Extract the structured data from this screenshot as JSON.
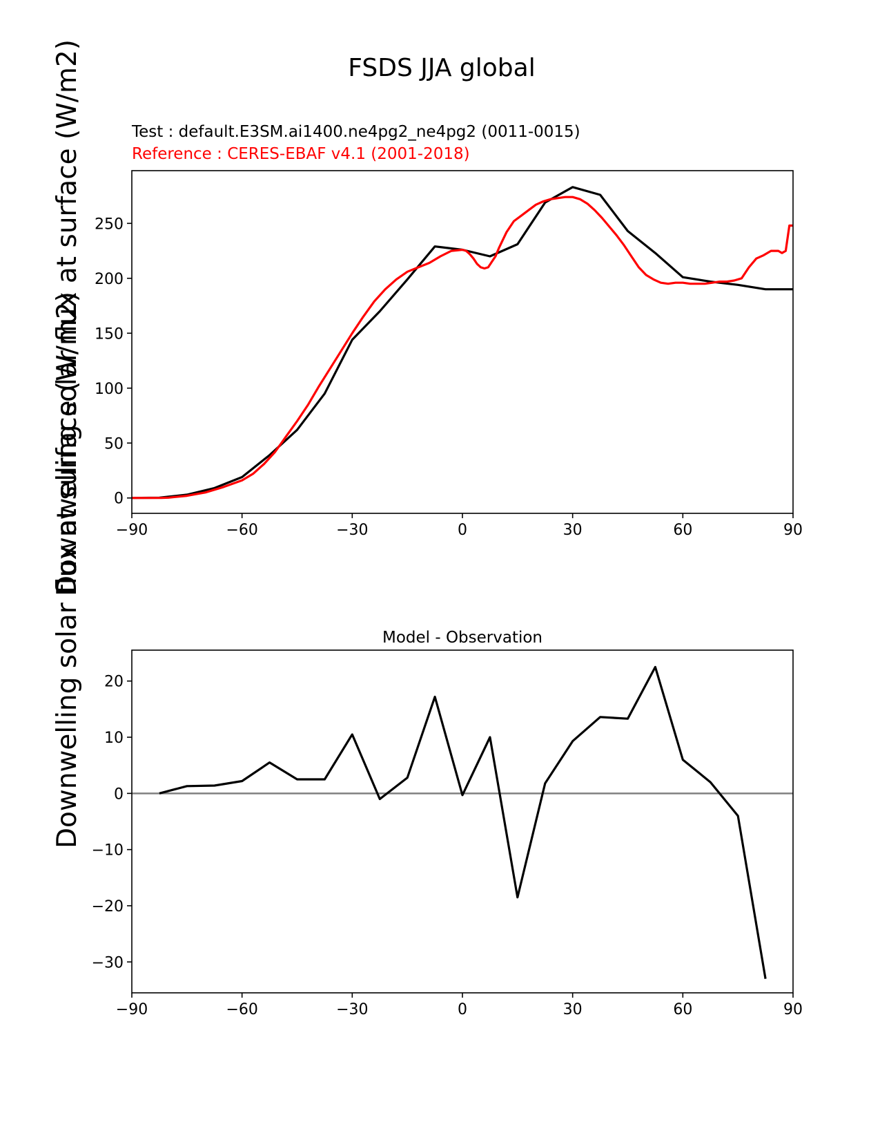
{
  "figure": {
    "title": "FSDS JJA global",
    "ylabel_top": "Downwelling solar flux at surface (W/m2)",
    "ylabel_bottom": "Downwelling solar flux at surface (W/m2)"
  },
  "chart_data": [
    {
      "type": "line",
      "subtitle_test": "Test : default.E3SM.ai1400.ne4pg2_ne4pg2 (0011-0015)",
      "subtitle_ref": "Reference : CERES-EBAF v4.1 (2001-2018)",
      "xlim": [
        -90,
        90
      ],
      "ylim": [
        -14,
        298
      ],
      "xticks": [
        -90,
        -60,
        -30,
        0,
        30,
        60,
        90
      ],
      "xtick_labels": [
        "−90",
        "−60",
        "−30",
        "0",
        "30",
        "60",
        "90"
      ],
      "yticks": [
        0,
        50,
        100,
        150,
        200,
        250
      ],
      "ytick_labels": [
        "0",
        "50",
        "100",
        "150",
        "200",
        "250"
      ],
      "grid": false,
      "series": [
        {
          "color": "#000000",
          "x": [
            -90,
            -82.5,
            -75,
            -67.5,
            -60,
            -52.5,
            -45,
            -37.5,
            -30,
            -22.5,
            -15,
            -7.5,
            0,
            7.5,
            15,
            22.5,
            30,
            37.5,
            45,
            52.5,
            60,
            67.5,
            75,
            82.5,
            90
          ],
          "y": [
            0,
            0.2,
            3,
            9,
            19,
            39,
            62,
            95,
            144,
            170,
            199,
            229,
            226,
            220,
            231,
            269,
            283,
            276,
            243,
            223,
            201,
            197,
            194,
            190,
            190
          ]
        },
        {
          "color": "#ff0000",
          "x": [
            -90,
            -85,
            -82,
            -80,
            -75,
            -70,
            -65,
            -60,
            -57,
            -54,
            -51,
            -48,
            -45,
            -42,
            -39,
            -36,
            -33,
            -30,
            -27,
            -24,
            -21,
            -18,
            -15,
            -12,
            -9,
            -6,
            -3,
            0,
            1,
            2,
            3,
            4,
            5,
            6,
            7,
            8,
            9,
            10,
            12,
            14,
            16,
            18,
            20,
            22,
            24,
            26,
            28,
            30,
            32,
            34,
            36,
            38,
            40,
            42,
            44,
            46,
            48,
            50,
            52,
            54,
            56,
            58,
            60,
            62,
            64,
            66,
            68,
            70,
            72,
            74,
            76,
            78,
            80,
            82,
            84,
            86,
            87,
            88,
            89,
            90
          ],
          "y": [
            0,
            0,
            0,
            0.3,
            2,
            5,
            10,
            16,
            22,
            31,
            42,
            56,
            70,
            85,
            102,
            118,
            134,
            150,
            165,
            179,
            190,
            199,
            206,
            210,
            214,
            220,
            225,
            226,
            225,
            222,
            218,
            213,
            210,
            209,
            210,
            215,
            220,
            228,
            242,
            252,
            257,
            262,
            267,
            270,
            272,
            273,
            274,
            274,
            272,
            268,
            262,
            255,
            247,
            239,
            230,
            220,
            210,
            203,
            199,
            196,
            195,
            196,
            196,
            195,
            195,
            195,
            196,
            197,
            197,
            198,
            200,
            210,
            218,
            221,
            225,
            225,
            223,
            225,
            248,
            248
          ]
        }
      ]
    },
    {
      "type": "line",
      "title": "Model - Observation",
      "xlim": [
        -90,
        90
      ],
      "ylim": [
        -35.5,
        25.5
      ],
      "xticks": [
        -90,
        -60,
        -30,
        0,
        30,
        60,
        90
      ],
      "xtick_labels": [
        "−90",
        "−60",
        "−30",
        "0",
        "30",
        "60",
        "90"
      ],
      "yticks": [
        -30,
        -20,
        -10,
        0,
        10,
        20
      ],
      "ytick_labels": [
        "−30",
        "−20",
        "−10",
        "0",
        "10",
        "20"
      ],
      "zero_line_color": "#808080",
      "grid": false,
      "series": [
        {
          "color": "#000000",
          "x": [
            -82.5,
            -75,
            -67.5,
            -60,
            -52.5,
            -45,
            -37.5,
            -30,
            -22.5,
            -15,
            -7.5,
            0,
            7.5,
            15,
            22.5,
            30,
            37.5,
            45,
            52.5,
            60,
            67.5,
            75,
            82.5
          ],
          "y": [
            0,
            1.3,
            1.4,
            2.2,
            5.5,
            2.5,
            2.5,
            10.5,
            -1,
            2.8,
            17.2,
            -0.3,
            10,
            -18.5,
            1.8,
            9.3,
            13.6,
            13.3,
            22.5,
            6,
            2,
            -4,
            -33
          ]
        }
      ]
    }
  ]
}
